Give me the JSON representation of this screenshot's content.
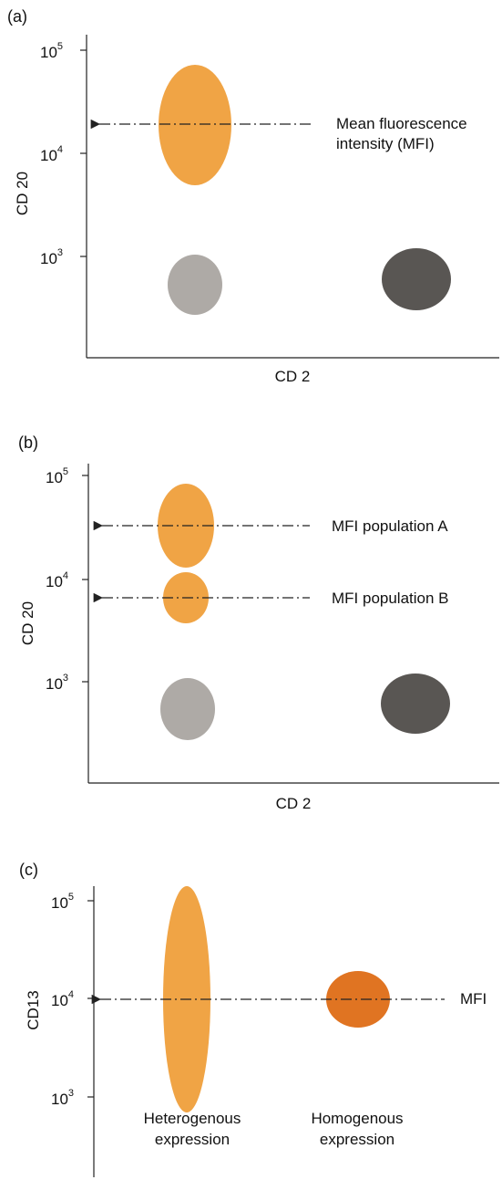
{
  "colors": {
    "orange": "#F0A445",
    "dark_orange": "#E07422",
    "light_gray": "#AEAAA6",
    "dark_gray": "#595653",
    "axis": "#222222"
  },
  "panel_a": {
    "label": "(a)",
    "y_axis_title": "CD 20",
    "x_axis_title": "CD 2",
    "ticks": [
      {
        "base": "10",
        "exp": "5"
      },
      {
        "base": "10",
        "exp": "4"
      },
      {
        "base": "10",
        "exp": "3"
      }
    ],
    "annotation_line1": "Mean fluorescence",
    "annotation_line2": "intensity (MFI)"
  },
  "panel_b": {
    "label": "(b)",
    "y_axis_title": "CD 20",
    "x_axis_title": "CD 2",
    "ticks": [
      {
        "base": "10",
        "exp": "5"
      },
      {
        "base": "10",
        "exp": "4"
      },
      {
        "base": "10",
        "exp": "3"
      }
    ],
    "annotation_a": "MFI population A",
    "annotation_b": "MFI population B"
  },
  "panel_c": {
    "label": "(c)",
    "y_axis_title": "CD13",
    "ticks": [
      {
        "base": "10",
        "exp": "5"
      },
      {
        "base": "10",
        "exp": "4"
      },
      {
        "base": "10",
        "exp": "3"
      }
    ],
    "annotation": "MFI",
    "left_caption_line1": "Heterogenous",
    "left_caption_line2": "expression",
    "right_caption_line1": "Homogenous",
    "right_caption_line2": "expression"
  }
}
